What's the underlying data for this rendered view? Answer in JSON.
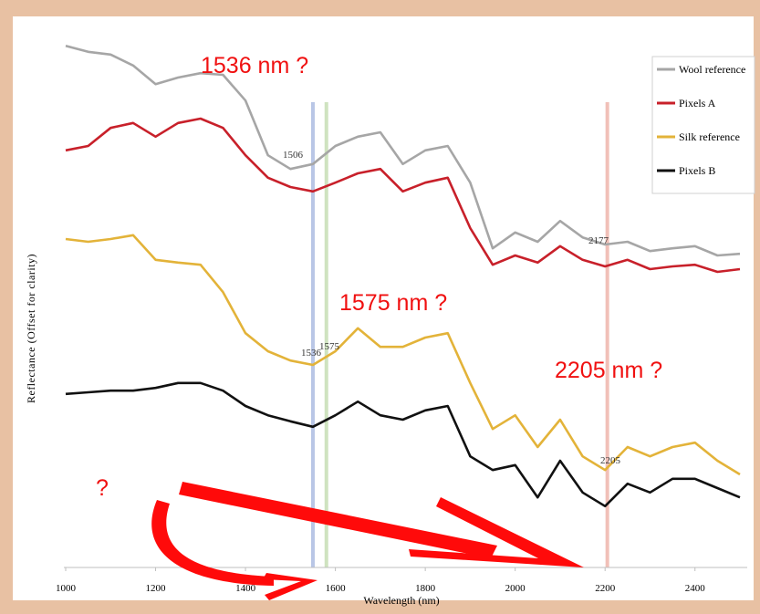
{
  "chart_data": {
    "type": "line",
    "xlabel": "Wavelength (nm)",
    "ylabel": "Reflectance (Offset for clarity)",
    "x": [
      1000,
      1050,
      1100,
      1150,
      1200,
      1250,
      1300,
      1350,
      1400,
      1450,
      1500,
      1550,
      1600,
      1650,
      1700,
      1750,
      1800,
      1850,
      1900,
      1950,
      2000,
      2050,
      2100,
      2150,
      2200,
      2250,
      2300,
      2350,
      2400,
      2450,
      2500
    ],
    "xlim": [
      1000,
      2500
    ],
    "xticks": [
      1000,
      1200,
      1400,
      1600,
      1800,
      2000,
      2200,
      2400
    ],
    "ylim": [
      0,
      100
    ],
    "series": [
      {
        "name": "Wool reference",
        "color": "#a6a6a6",
        "values": [
          95.3,
          94.2,
          93.7,
          91.7,
          88.3,
          89.5,
          90.3,
          90,
          85.3,
          75.3,
          72.8,
          73.7,
          77,
          78.7,
          79.5,
          73.7,
          76.2,
          77,
          70.3,
          58.3,
          61.2,
          59.5,
          63.3,
          60.3,
          59,
          59.5,
          57.8,
          58.3,
          58.7,
          57,
          57.3
        ]
      },
      {
        "name": "Pixels A",
        "color": "#c8202a",
        "values": [
          76.2,
          77,
          80.3,
          81.2,
          78.7,
          81.2,
          82,
          80.3,
          75.3,
          71.2,
          69.5,
          68.7,
          70.3,
          72,
          72.8,
          68.7,
          70.3,
          71.2,
          62,
          55.3,
          57,
          55.7,
          58.7,
          56.2,
          55,
          56.2,
          54.5,
          55,
          55.3,
          54,
          54.5
        ]
      },
      {
        "name": "Silk reference",
        "color": "#e3b339",
        "values": [
          60,
          59.5,
          60,
          60.7,
          56.2,
          55.7,
          55.3,
          50.3,
          42.8,
          39.5,
          37.8,
          37,
          39.5,
          43.7,
          40.3,
          40.3,
          42,
          42.8,
          33.7,
          25.3,
          27.8,
          22,
          27,
          20.3,
          17.8,
          22,
          20.3,
          22,
          22.8,
          19.5,
          17
        ]
      },
      {
        "name": "Pixels B",
        "color": "#111111",
        "values": [
          31.7,
          32,
          32.3,
          32.3,
          32.8,
          33.7,
          33.7,
          32.3,
          29.5,
          27.8,
          26.7,
          25.7,
          27.8,
          30.3,
          27.8,
          27,
          28.7,
          29.5,
          20.3,
          17.8,
          18.7,
          12.8,
          19.5,
          13.7,
          11.2,
          15.3,
          13.7,
          16.2,
          16.2,
          14.5,
          12.8
        ]
      }
    ],
    "reference_lines": [
      {
        "x": 1550,
        "color": "#b9c6e6"
      },
      {
        "x": 1580,
        "color": "#cfe3c0"
      },
      {
        "x": 2205,
        "color": "#f1c0b8"
      }
    ],
    "peak_labels": [
      "1506",
      "1536",
      "1575",
      "2177",
      "2205"
    ],
    "annotations": [
      "1536 nm ?",
      "1575 nm ?",
      "2205 nm ?",
      "?"
    ],
    "legend": "upper right"
  }
}
